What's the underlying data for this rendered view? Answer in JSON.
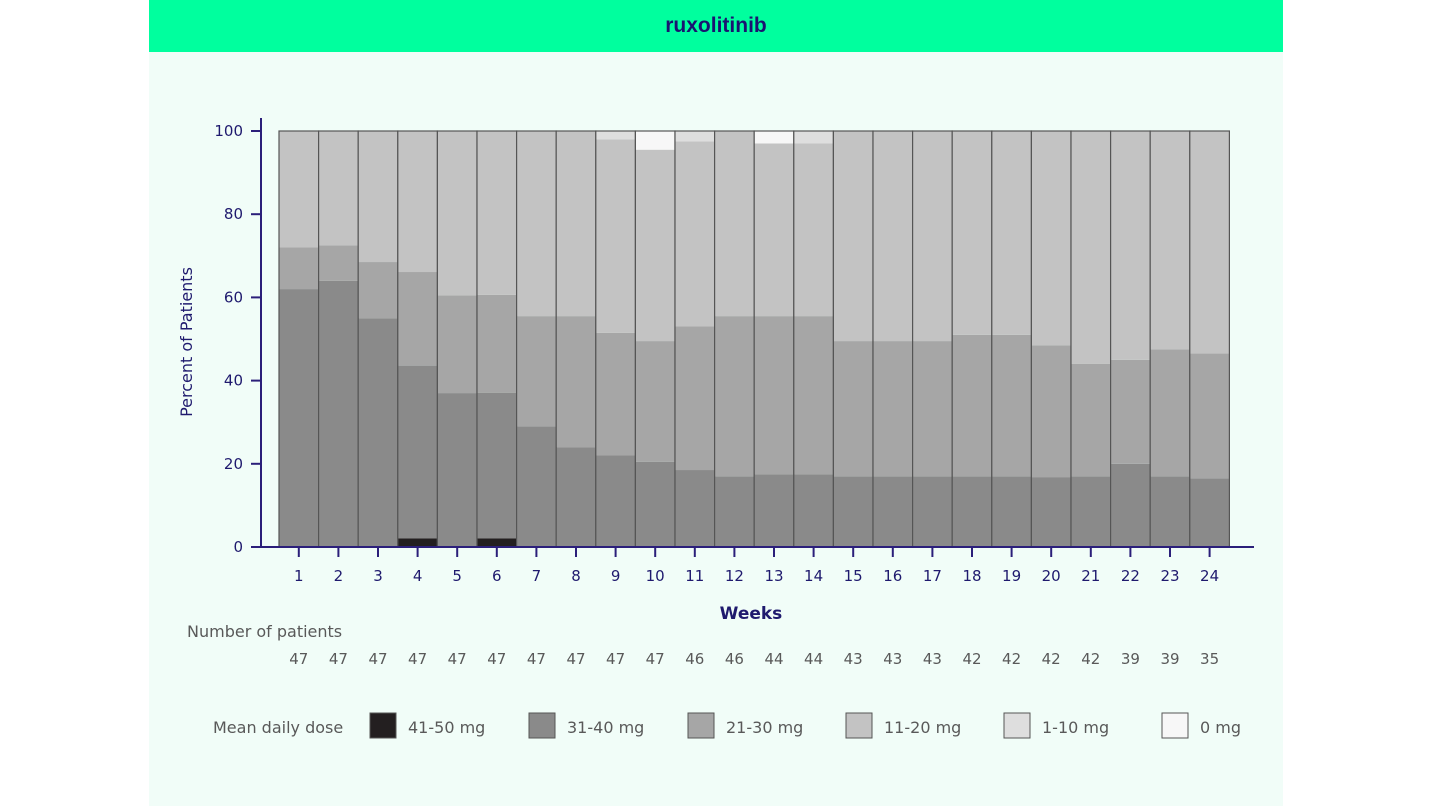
{
  "title": "ruxolitinib",
  "chart_data": {
    "type": "bar",
    "stacked": true,
    "ylabel": "Percent of Patients",
    "xlabel": "Weeks",
    "ylim": [
      0,
      100
    ],
    "yticks": [
      "0",
      "20",
      "40",
      "60",
      "80",
      "100"
    ],
    "categories": [
      "1",
      "2",
      "3",
      "4",
      "5",
      "6",
      "7",
      "8",
      "9",
      "10",
      "11",
      "12",
      "13",
      "14",
      "15",
      "16",
      "17",
      "18",
      "19",
      "20",
      "21",
      "22",
      "23",
      "24"
    ],
    "series": [
      {
        "name": "41-50 mg",
        "color": "#231f20",
        "values": [
          0,
          0,
          0,
          2.1,
          0,
          2.1,
          0,
          0,
          0,
          0,
          0,
          0,
          0,
          0,
          0,
          0,
          0,
          0,
          0,
          0,
          0,
          0,
          0,
          0
        ]
      },
      {
        "name": "31-40 mg",
        "color": "#8a8a8a",
        "values": [
          62,
          64,
          55,
          41.5,
          37,
          35,
          29,
          24,
          22,
          20.5,
          18.5,
          17,
          17.5,
          17.5,
          17,
          17,
          17,
          17,
          17,
          16.8,
          17,
          20,
          17,
          16.5
        ]
      },
      {
        "name": "21-30 mg",
        "color": "#a6a6a6",
        "values": [
          10,
          8.5,
          13.5,
          22.5,
          23.5,
          23.5,
          26.5,
          31.5,
          29.5,
          29,
          34.5,
          38.5,
          38,
          38,
          32.5,
          32.5,
          32.5,
          34,
          34,
          31.7,
          27,
          25,
          30.5,
          30
        ]
      },
      {
        "name": "11-20 mg",
        "color": "#c3c3c3",
        "values": [
          28,
          27.5,
          31.5,
          33.9,
          39.5,
          39.4,
          44.5,
          44.5,
          46.5,
          46,
          44.5,
          44.5,
          41.5,
          41.5,
          50.5,
          50.5,
          50.5,
          49,
          49,
          51.5,
          56,
          55,
          52.5,
          53.5
        ]
      },
      {
        "name": "1-10 mg",
        "color": "#dedede",
        "values": [
          0,
          0,
          0,
          0,
          0,
          0,
          0,
          0,
          2,
          0,
          2.5,
          0,
          0,
          3,
          0,
          0,
          0,
          0,
          0,
          0,
          0,
          0,
          0,
          0
        ]
      },
      {
        "name": "0 mg",
        "color": "#f7f7f7",
        "values": [
          0,
          0,
          0,
          0,
          0,
          0,
          0,
          0,
          0,
          4.5,
          0,
          0,
          3,
          0,
          0,
          0,
          0,
          0,
          0,
          0,
          0,
          0,
          0,
          0
        ]
      }
    ],
    "patients_label": "Number of patients",
    "patients": [
      "47",
      "47",
      "47",
      "47",
      "47",
      "47",
      "47",
      "47",
      "47",
      "47",
      "46",
      "46",
      "44",
      "44",
      "43",
      "43",
      "43",
      "42",
      "42",
      "42",
      "42",
      "39",
      "39",
      "35"
    ],
    "legend_title": "Mean daily dose",
    "legend_placement": "bottom",
    "grid": false
  }
}
